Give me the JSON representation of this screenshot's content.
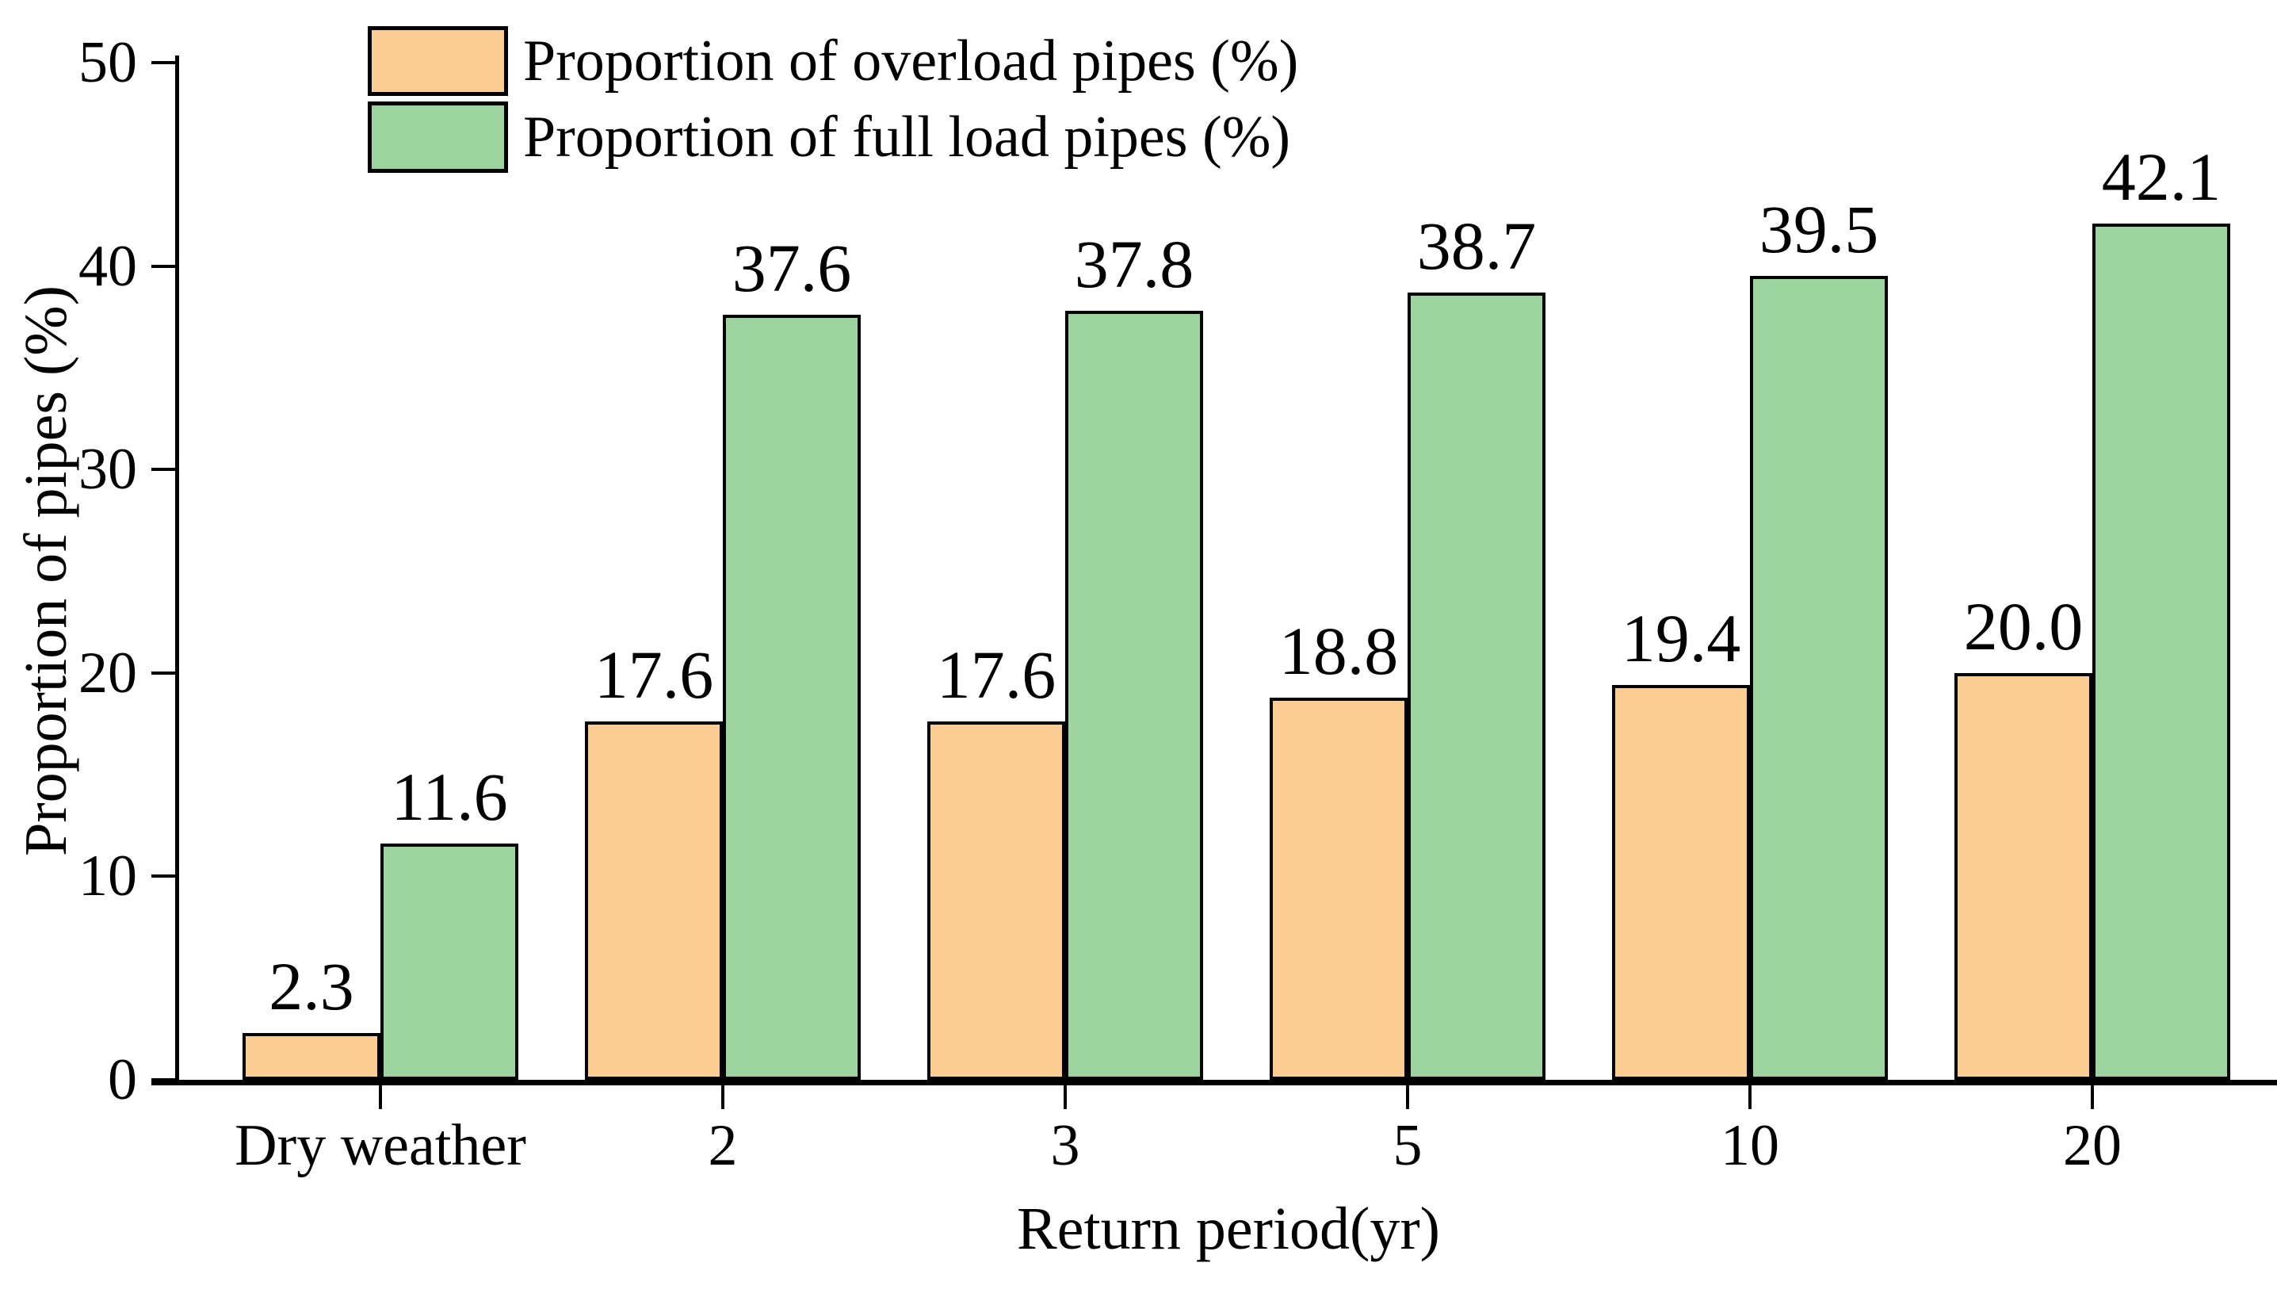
{
  "chart_data": {
    "type": "bar",
    "categories": [
      "Dry weather",
      "2",
      "3",
      "5",
      "10",
      "20"
    ],
    "series": [
      {
        "name": "Proportion of overload pipes (%)",
        "color": "#FCCD93",
        "values": [
          2.3,
          17.6,
          17.6,
          18.8,
          19.4,
          20.0
        ],
        "value_labels": [
          "2.3",
          "17.6",
          "17.6",
          "18.8",
          "19.4",
          "20.0"
        ]
      },
      {
        "name": "Proportion of full load pipes (%)",
        "color": "#9BD49C",
        "values": [
          11.6,
          37.6,
          37.8,
          38.7,
          39.5,
          42.1
        ],
        "value_labels": [
          "11.6",
          "37.6",
          "37.8",
          "38.7",
          "39.5",
          "42.1"
        ]
      }
    ],
    "xlabel": "Return period(yr)",
    "ylabel": "Proportion of pipes (%)",
    "ylim": [
      0,
      50
    ],
    "yticks": [
      "0",
      "10",
      "20",
      "30",
      "40",
      "50"
    ],
    "legend_position": "top-left",
    "grid": false,
    "outline_color": "#000000",
    "text_color": "#000000",
    "background_color": "#ffffff"
  }
}
